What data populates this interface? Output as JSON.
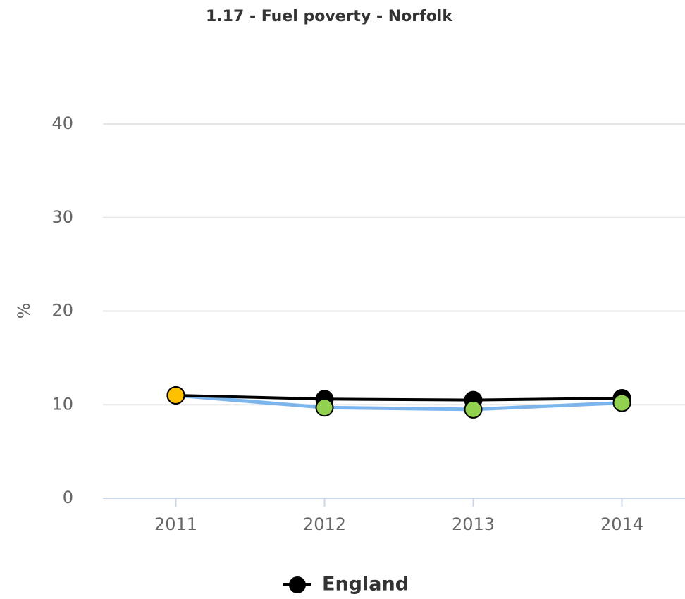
{
  "chart_data": {
    "type": "line",
    "title": "1.17 - Fuel poverty - Norfolk",
    "y_label": "%",
    "categories": [
      "2011",
      "2012",
      "2013",
      "2014"
    ],
    "series": [
      {
        "name": "England",
        "color": "#000000",
        "values": [
          11.0,
          10.6,
          10.5,
          10.7
        ]
      },
      {
        "color": "#7cb5ec",
        "point_colors": [
          "#ffc000",
          "#92d050",
          "#92d050",
          "#92d050"
        ],
        "values": [
          11.0,
          9.7,
          9.5,
          10.2
        ]
      }
    ],
    "ylim": [
      0,
      40
    ],
    "yticks": [
      0,
      10,
      20,
      30,
      40
    ],
    "grid": true,
    "legend": "bottom"
  }
}
